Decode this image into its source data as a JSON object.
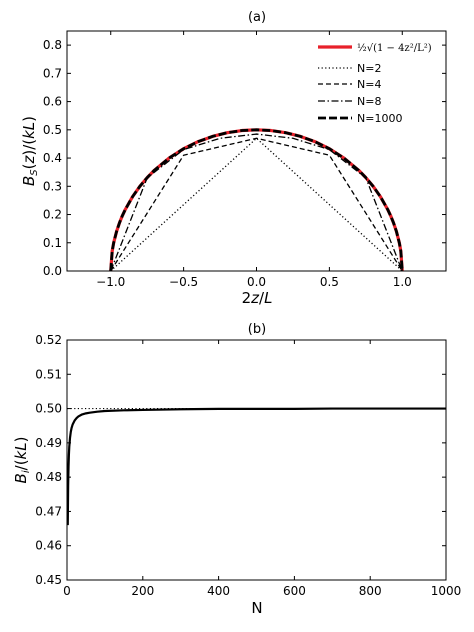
{
  "chart_data": [
    {
      "type": "line",
      "title": "(a)",
      "xlabel": "2z/L",
      "ylabel": "B_S(z)/(kL)",
      "xlim": [
        -1.3,
        1.3
      ],
      "ylim": [
        0,
        0.85
      ],
      "xticks": [
        -1.0,
        -0.5,
        0.0,
        0.5,
        1.0
      ],
      "xtick_labels": [
        "−1.0",
        "−0.5",
        "0.0",
        "0.5",
        "1.0"
      ],
      "yticks": [
        0.0,
        0.1,
        0.2,
        0.3,
        0.4,
        0.5,
        0.6,
        0.7,
        0.8
      ],
      "ytick_labels": [
        "0.0",
        "0.1",
        "0.2",
        "0.3",
        "0.4",
        "0.5",
        "0.6",
        "0.7",
        "0.8"
      ],
      "legend_position": "top-right",
      "series": [
        {
          "name": "½√(1 − 4z²/L²)",
          "style": "solid",
          "color": "#e8202a",
          "x": [
            -1.0,
            -0.99,
            -0.98,
            -0.96,
            -0.94,
            -0.92,
            -0.9,
            -0.85,
            -0.8,
            -0.75,
            -0.7,
            -0.6,
            -0.5,
            -0.4,
            -0.3,
            -0.2,
            -0.1,
            0.0,
            0.1,
            0.2,
            0.3,
            0.4,
            0.5,
            0.6,
            0.7,
            0.75,
            0.8,
            0.85,
            0.9,
            0.92,
            0.94,
            0.96,
            0.98,
            0.99,
            1.0
          ],
          "y": [
            0.0,
            0.0705,
            0.0995,
            0.14,
            0.1706,
            0.196,
            0.2179,
            0.2634,
            0.3,
            0.3307,
            0.3571,
            0.4,
            0.433,
            0.4583,
            0.477,
            0.4899,
            0.4975,
            0.5,
            0.4975,
            0.4899,
            0.477,
            0.4583,
            0.433,
            0.4,
            0.3571,
            0.3307,
            0.3,
            0.2634,
            0.2179,
            0.196,
            0.1706,
            0.14,
            0.0995,
            0.0705,
            0.0
          ]
        },
        {
          "name": "N=2",
          "style": "dotted",
          "color": "#000000",
          "x": [
            -1.0,
            0.0,
            1.0
          ],
          "y": [
            0.0,
            0.47,
            0.0
          ]
        },
        {
          "name": "N=4",
          "style": "dashed",
          "color": "#000000",
          "x": [
            -1.0,
            -0.5,
            0.0,
            0.5,
            1.0
          ],
          "y": [
            0.0,
            0.41,
            0.47,
            0.41,
            0.0
          ]
        },
        {
          "name": "N=8",
          "style": "dashdot",
          "color": "#000000",
          "x": [
            -1.0,
            -0.75,
            -0.5,
            -0.25,
            0.0,
            0.25,
            0.5,
            0.75,
            1.0
          ],
          "y": [
            0.0,
            0.33,
            0.43,
            0.47,
            0.485,
            0.47,
            0.43,
            0.33,
            0.0
          ]
        },
        {
          "name": "N=1000",
          "style": "longdash",
          "color": "#000000",
          "x": [
            -1.0,
            -0.99,
            -0.98,
            -0.96,
            -0.94,
            -0.92,
            -0.9,
            -0.85,
            -0.8,
            -0.75,
            -0.7,
            -0.6,
            -0.5,
            -0.4,
            -0.3,
            -0.2,
            -0.1,
            0.0,
            0.1,
            0.2,
            0.3,
            0.4,
            0.5,
            0.6,
            0.7,
            0.75,
            0.8,
            0.85,
            0.9,
            0.92,
            0.94,
            0.96,
            0.98,
            0.99,
            1.0
          ],
          "y": [
            0.0,
            0.0705,
            0.0995,
            0.14,
            0.1706,
            0.196,
            0.2179,
            0.2634,
            0.3,
            0.3307,
            0.3571,
            0.4,
            0.433,
            0.4583,
            0.477,
            0.4899,
            0.4975,
            0.5,
            0.4975,
            0.4899,
            0.477,
            0.4583,
            0.433,
            0.4,
            0.3571,
            0.3307,
            0.3,
            0.2634,
            0.2179,
            0.196,
            0.1706,
            0.14,
            0.0995,
            0.0705,
            0.0
          ]
        }
      ]
    },
    {
      "type": "line",
      "title": "(b)",
      "xlabel": "N",
      "ylabel": "B_i/(kL)",
      "xlim": [
        0,
        1000
      ],
      "ylim": [
        0.45,
        0.52
      ],
      "xticks": [
        0,
        200,
        400,
        600,
        800,
        1000
      ],
      "xtick_labels": [
        "0",
        "200",
        "400",
        "600",
        "800",
        "1000"
      ],
      "yticks": [
        0.45,
        0.46,
        0.47,
        0.48,
        0.49,
        0.5,
        0.51,
        0.52
      ],
      "ytick_labels": [
        "0.45",
        "0.46",
        "0.47",
        "0.48",
        "0.49",
        "0.50",
        "0.51",
        "0.52"
      ],
      "reference_line": {
        "y": 0.5,
        "style": "dotted"
      },
      "series": [
        {
          "style": "solid",
          "color": "#000000",
          "x": [
            2,
            3,
            4,
            5,
            6,
            8,
            10,
            12,
            15,
            20,
            25,
            30,
            40,
            50,
            60,
            80,
            100,
            150,
            200,
            300,
            400,
            500,
            600,
            700,
            800,
            900,
            1000
          ],
          "y": [
            0.466,
            0.4775,
            0.483,
            0.4865,
            0.4888,
            0.4915,
            0.4932,
            0.4943,
            0.4954,
            0.4965,
            0.4972,
            0.4977,
            0.4983,
            0.4986,
            0.4988,
            0.4991,
            0.4993,
            0.4995,
            0.4996,
            0.4998,
            0.4999,
            0.4999,
            0.4999,
            0.5,
            0.5,
            0.5,
            0.5
          ]
        }
      ]
    }
  ]
}
